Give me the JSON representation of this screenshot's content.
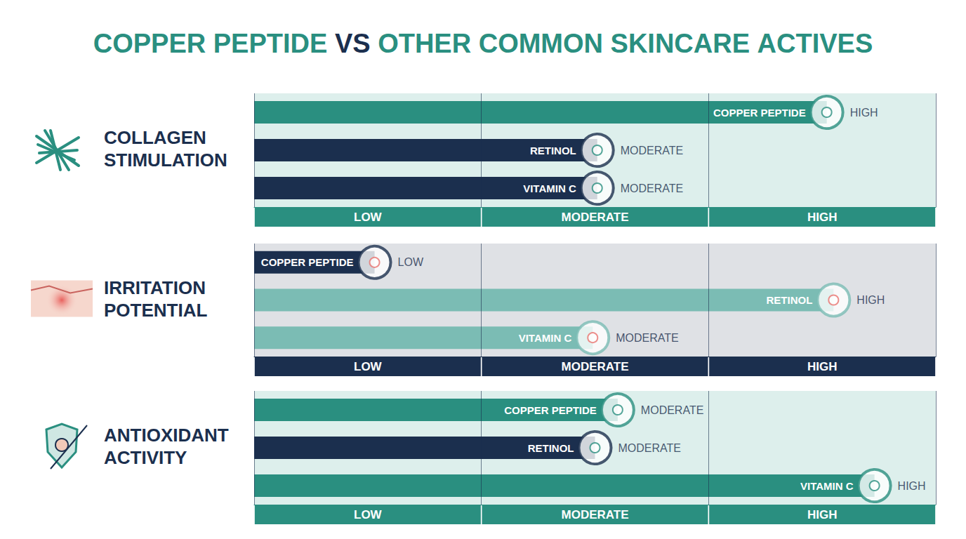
{
  "title": "COPPER PEPTIDE VS OTHER COMMON SKINCARE ACTIVES",
  "chart_data": [
    {
      "type": "bar",
      "orientation": "horizontal",
      "title": "COLLAGEN STIMULATION",
      "categories": [
        "COPPER PEPTIDE",
        "RETINOL",
        "VITAMIN C"
      ],
      "values": [
        2.52,
        1.51,
        1.51
      ],
      "value_labels": [
        "HIGH",
        "MODERATE",
        "MODERATE"
      ],
      "data_labels": true,
      "colors": [
        "#2a8f80",
        "#1b2f4e",
        "#1b2f4e"
      ],
      "xlim": [
        0,
        3
      ],
      "xticks": [
        {
          "value": 0.5,
          "label": "LOW"
        },
        {
          "value": 1.5,
          "label": "MODERATE"
        },
        {
          "value": 2.5,
          "label": "HIGH"
        }
      ],
      "grid": false,
      "tick_labels": "x"
    },
    {
      "type": "bar",
      "orientation": "horizontal",
      "title": "IRRITATION POTENTIAL",
      "categories": [
        "COPPER PEPTIDE",
        "RETINOL",
        "VITAMIN C"
      ],
      "values": [
        0.53,
        2.55,
        1.49
      ],
      "value_labels": [
        "LOW",
        "HIGH",
        "MODERATE"
      ],
      "data_labels": true,
      "colors": [
        "#1b2f4e",
        "#7bbcb4",
        "#7bbcb4"
      ],
      "xlim": [
        0,
        3
      ],
      "xticks": [
        {
          "value": 0.5,
          "label": "LOW"
        },
        {
          "value": 1.5,
          "label": "MODERATE"
        },
        {
          "value": 2.5,
          "label": "HIGH"
        }
      ],
      "grid": false,
      "tick_labels": "x"
    },
    {
      "type": "bar",
      "orientation": "horizontal",
      "title": "ANTIOXIDANT ACTIVITY",
      "categories": [
        "COPPER PEPTIDE",
        "RETINOL",
        "VITAMIN C"
      ],
      "values": [
        1.6,
        1.5,
        2.73
      ],
      "value_labels": [
        "MODERATE",
        "MODERATE",
        "HIGH"
      ],
      "data_labels": true,
      "colors": [
        "#2a8f80",
        "#1b2f4e",
        "#2a8f80"
      ],
      "xlim": [
        0,
        3
      ],
      "xticks": [
        {
          "value": 0.5,
          "label": "LOW"
        },
        {
          "value": 1.5,
          "label": "MODERATE"
        },
        {
          "value": 2.5,
          "label": "HIGH"
        }
      ],
      "grid": false,
      "tick_labels": "x"
    }
  ]
}
